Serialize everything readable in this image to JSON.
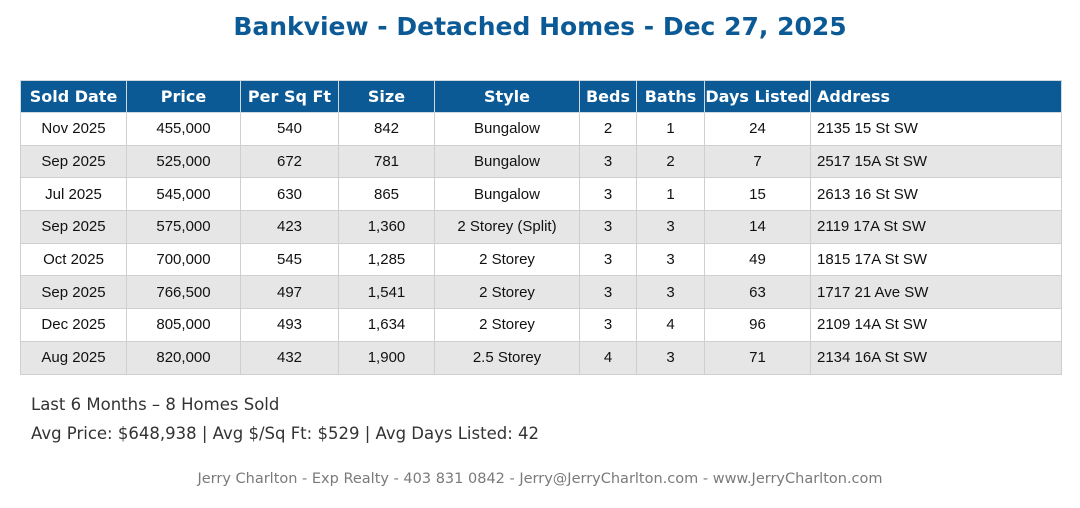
{
  "title": "Bankview - Detached Homes - Dec 27, 2025",
  "colors": {
    "header_bg": "#0b5a96",
    "title": "#0b5a96",
    "alt_row": "#e6e6e6"
  },
  "table": {
    "columns": [
      "Sold Date",
      "Price",
      "Per Sq Ft",
      "Size",
      "Style",
      "Beds",
      "Baths",
      "Days Listed",
      "Address"
    ],
    "rows": [
      [
        "Nov 2025",
        "455,000",
        "540",
        "842",
        "Bungalow",
        "2",
        "1",
        "24",
        "2135 15 St SW"
      ],
      [
        "Sep 2025",
        "525,000",
        "672",
        "781",
        "Bungalow",
        "3",
        "2",
        "7",
        "2517 15A St SW"
      ],
      [
        "Jul 2025",
        "545,000",
        "630",
        "865",
        "Bungalow",
        "3",
        "1",
        "15",
        "2613 16 St SW"
      ],
      [
        "Sep 2025",
        "575,000",
        "423",
        "1,360",
        "2 Storey (Split)",
        "3",
        "3",
        "14",
        "2119 17A St SW"
      ],
      [
        "Oct 2025",
        "700,000",
        "545",
        "1,285",
        "2 Storey",
        "3",
        "3",
        "49",
        "1815 17A St SW"
      ],
      [
        "Sep 2025",
        "766,500",
        "497",
        "1,541",
        "2 Storey",
        "3",
        "3",
        "63",
        "1717 21 Ave SW"
      ],
      [
        "Dec 2025",
        "805,000",
        "493",
        "1,634",
        "2 Storey",
        "3",
        "4",
        "96",
        "2109 14A St SW"
      ],
      [
        "Aug 2025",
        "820,000",
        "432",
        "1,900",
        "2.5 Storey",
        "4",
        "3",
        "71",
        "2134 16A St SW"
      ]
    ]
  },
  "summary": {
    "line1": "Last 6 Months – 8 Homes Sold",
    "line2": "Avg Price: $648,938 | Avg $/Sq Ft: $529 | Avg Days Listed: 42"
  },
  "footer": "Jerry Charlton - Exp Realty - 403 831 0842 - Jerry@JerryCharlton.com - www.JerryCharlton.com"
}
